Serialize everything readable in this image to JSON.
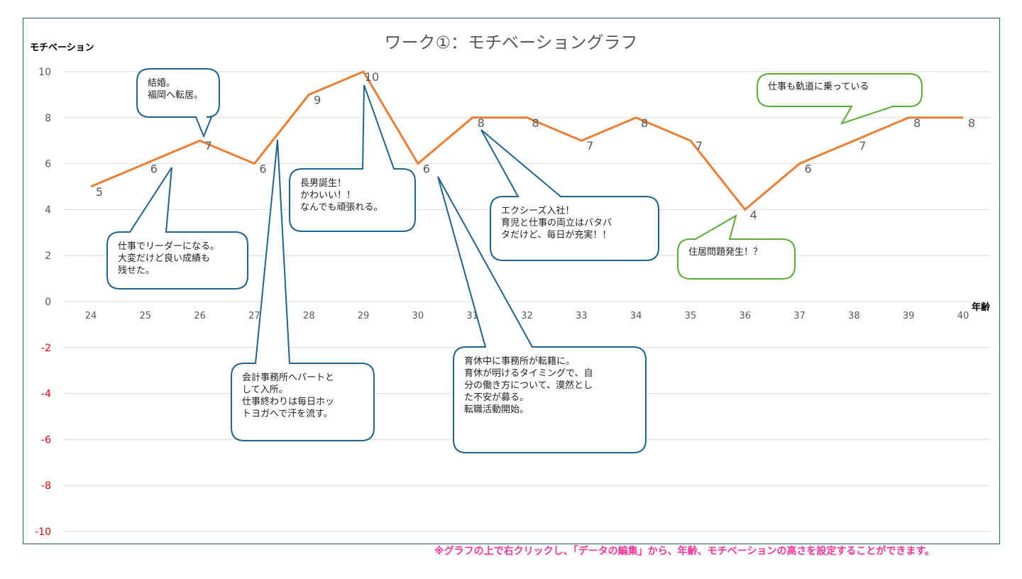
{
  "chart_data": {
    "type": "line",
    "title": "ワーク①：モチベーショングラフ",
    "xlabel": "年齢",
    "ylabel": "モチベーション",
    "x": [
      24,
      25,
      26,
      27,
      28,
      29,
      30,
      31,
      32,
      33,
      34,
      35,
      36,
      37,
      38,
      39,
      40
    ],
    "series": [
      {
        "name": "モチベーション",
        "values": [
          5,
          6,
          7,
          6,
          9,
          10,
          6,
          8,
          8,
          7,
          8,
          7,
          4,
          6,
          7,
          8,
          8
        ],
        "color": "#ed7d31"
      }
    ],
    "ylim": [
      -10,
      10
    ],
    "yticks": [
      10,
      8,
      6,
      4,
      2,
      0,
      -2,
      -4,
      -6,
      -8,
      -10
    ],
    "grid": true,
    "negative_tick_color": "#ff0000",
    "annotations": [
      {
        "text": "結婚。\n福岡へ転居。",
        "color": "#1f6391"
      },
      {
        "text": "仕事でリーダーになる。\n大変だけど良い成績も\n残せた。",
        "color": "#1f6391"
      },
      {
        "text": "長男誕生！\nかわいい！！\nなんでも頑張れる。",
        "color": "#1f6391"
      },
      {
        "text": "会計事務所へパートと\nして入所。\n仕事終わりは毎日ホッ\nトヨガへで汗を流す。",
        "color": "#1f6391"
      },
      {
        "text": "エクシーズ入社！\n育児と仕事の両立はバタバ\nタだけど、毎日が充実！！",
        "color": "#1f6391"
      },
      {
        "text": "育休中に事務所が転籍に。\n育休が明けるタイミングで、自\n分の働き方について、漠然とし\nた不安が募る。\n転職活動開始。",
        "color": "#1f6391"
      },
      {
        "text": "住居問題発生！？",
        "color": "#5aac35"
      },
      {
        "text": "仕事も軌道に乗っている",
        "color": "#5aac35"
      }
    ]
  },
  "footnote": "※グラフの上で右クリックし、「データの編集」から、年齢、モチベーションの高さを設定することができます。"
}
